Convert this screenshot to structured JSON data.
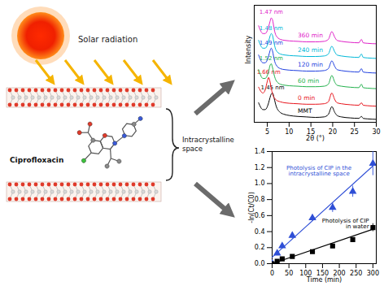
{
  "diagram": {
    "sun_label": "Solar radiation",
    "molecule_label": "Ciprofloxacin",
    "space_label": "Intracrystalline space"
  },
  "chart_data": [
    {
      "type": "line",
      "x_label": "2θ (°)",
      "y_label": "Intensity",
      "tick_labels": "x",
      "xlim": [
        2,
        30
      ],
      "xticks": [
        5,
        10,
        15,
        20,
        25,
        30
      ],
      "ylim": [
        0,
        12
      ],
      "x": [
        3,
        4,
        4.5,
        5,
        5.3,
        5.6,
        5.9,
        6.2,
        6.6,
        7,
        8,
        9,
        10,
        12,
        14,
        16,
        18,
        19,
        19.8,
        20.5,
        21,
        22,
        24,
        26,
        26.6,
        27,
        28,
        30
      ],
      "series": [
        {
          "name": "MMT",
          "color": "#000000",
          "peak_label": "1.45 nm",
          "values": [
            2.0,
            1.3,
            1.3,
            1.6,
            2.0,
            2.5,
            2.9,
            3.0,
            2.4,
            1.7,
            1.0,
            0.8,
            0.7,
            0.6,
            0.55,
            0.5,
            0.55,
            0.8,
            1.6,
            1.0,
            0.7,
            0.55,
            0.45,
            0.4,
            0.6,
            0.4,
            0.35,
            0.3
          ]
        },
        {
          "name": "0 min",
          "color": "#e8141c",
          "peak_label": "1.66 nm",
          "values": [
            3.6,
            3.0,
            3.3,
            4.2,
            4.6,
            4.2,
            3.5,
            2.9,
            2.5,
            2.3,
            2.1,
            2.0,
            1.95,
            1.9,
            1.85,
            1.85,
            1.9,
            2.1,
            3.0,
            2.3,
            2.0,
            1.9,
            1.8,
            1.75,
            2.0,
            1.75,
            1.7,
            1.65
          ]
        },
        {
          "name": "60 min",
          "color": "#22b14c",
          "peak_label": "1.52 nm",
          "values": [
            5.4,
            4.5,
            4.5,
            4.8,
            5.2,
            5.8,
            6.0,
            5.6,
            4.8,
            4.3,
            3.9,
            3.8,
            3.75,
            3.7,
            3.65,
            3.65,
            3.7,
            3.9,
            4.8,
            4.1,
            3.8,
            3.7,
            3.6,
            3.55,
            3.9,
            3.55,
            3.5,
            3.45
          ]
        },
        {
          "name": "120 min",
          "color": "#1f3fe0",
          "peak_label": "1.49 nm",
          "values": [
            6.9,
            6.1,
            6.1,
            6.4,
            6.8,
            7.3,
            7.6,
            7.3,
            6.4,
            5.9,
            5.5,
            5.4,
            5.35,
            5.3,
            5.25,
            5.25,
            5.3,
            5.5,
            6.3,
            5.7,
            5.4,
            5.3,
            5.2,
            5.15,
            5.5,
            5.15,
            5.1,
            5.05
          ]
        },
        {
          "name": "240 min",
          "color": "#00b8d8",
          "peak_label": "1.48 nm",
          "values": [
            8.4,
            7.6,
            7.6,
            7.9,
            8.3,
            8.8,
            9.1,
            8.9,
            8.0,
            7.4,
            7.0,
            6.9,
            6.85,
            6.8,
            6.75,
            6.75,
            6.8,
            7.0,
            7.8,
            7.2,
            6.9,
            6.8,
            6.7,
            6.65,
            7.0,
            6.65,
            6.6,
            6.55
          ]
        },
        {
          "name": "360 min",
          "color": "#e020c8",
          "peak_label": "1.47 nm",
          "values": [
            9.9,
            9.1,
            9.1,
            9.4,
            9.8,
            10.3,
            10.7,
            10.5,
            9.5,
            8.9,
            8.5,
            8.4,
            8.35,
            8.3,
            8.25,
            8.25,
            8.3,
            8.5,
            9.3,
            8.7,
            8.4,
            8.3,
            8.2,
            8.15,
            8.5,
            8.15,
            8.1,
            8.05
          ]
        }
      ]
    },
    {
      "type": "scatter",
      "x_label": "Time (min)",
      "y_label": "-ln(Ct/C0)",
      "xlim": [
        0,
        310
      ],
      "xticks": [
        0,
        50,
        100,
        150,
        200,
        250,
        300
      ],
      "ylim": [
        0,
        1.4
      ],
      "yticks": [
        {
          "value": 0,
          "label": "0.0"
        },
        {
          "value": 0.2,
          "label": "0.2"
        },
        {
          "value": 0.4,
          "label": "0.4"
        },
        {
          "value": 0.6,
          "label": "0.6"
        },
        {
          "value": 0.8,
          "label": "0.8"
        },
        {
          "value": 1.0,
          "label": "1.0"
        },
        {
          "value": 1.2,
          "label": "1.2"
        },
        {
          "value": 1.4,
          "label": "1.4"
        }
      ],
      "series": [
        {
          "name": "Photolysis of CIP in the intracrystalline space",
          "color": "#2f4fd6",
          "marker": "triangle",
          "x": [
            0,
            15,
            30,
            60,
            120,
            180,
            240,
            300
          ],
          "values": [
            0,
            0.13,
            0.22,
            0.35,
            0.57,
            0.7,
            0.9,
            1.25
          ],
          "errors": [
            0.01,
            0.02,
            0.02,
            0.04,
            0.04,
            0.06,
            0.07,
            0.15
          ],
          "fit_x": [
            0,
            300
          ],
          "fit_values": [
            0.08,
            1.22
          ]
        },
        {
          "name": "Photolysis of CIP in water",
          "color": "#000000",
          "marker": "square",
          "x": [
            0,
            15,
            30,
            60,
            120,
            180,
            240,
            300
          ],
          "values": [
            0,
            0.03,
            0.06,
            0.09,
            0.15,
            0.22,
            0.3,
            0.45
          ],
          "errors": [
            0.01,
            0.01,
            0.01,
            0.01,
            0.01,
            0.02,
            0.02,
            0.05
          ],
          "fit_x": [
            0,
            300
          ],
          "fit_values": [
            0,
            0.43
          ]
        }
      ]
    }
  ]
}
